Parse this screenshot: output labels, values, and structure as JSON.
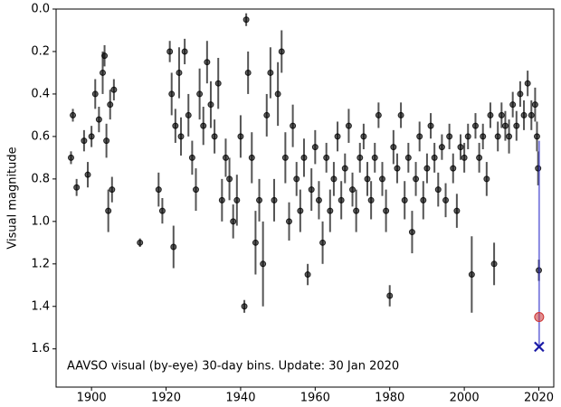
{
  "chart_data": {
    "type": "scatter",
    "ylabel": "Visual magnitude",
    "annotation": "AAVSO visual (by-eye) 30-day bins. Update: 30 Jan 2020",
    "xlim": [
      1890.5,
      2024
    ],
    "ylim": [
      0,
      1.78
    ],
    "y_inverted": true,
    "xticks": [
      1900,
      1920,
      1940,
      1960,
      1980,
      2000,
      2020
    ],
    "yticks": [
      {
        "value": 0,
        "label": "0.0"
      },
      0.2,
      0.4,
      0.6,
      0.8,
      {
        "value": 1,
        "label": "1.0"
      },
      1.2,
      1.4,
      1.6
    ],
    "series": [
      {
        "style": "errorbar",
        "color": "#000000",
        "err_color": "#555555",
        "x": [
          1894.5,
          1895,
          1896,
          1898,
          1899,
          1900,
          1901,
          1902,
          1903,
          1903.5,
          1904,
          1904.5,
          1905,
          1905.5,
          1906,
          1913,
          1918,
          1919,
          1921,
          1921.5,
          1922,
          1922.5,
          1923.5,
          1924,
          1925,
          1926,
          1927,
          1928,
          1929,
          1930,
          1931,
          1932,
          1933,
          1934,
          1935,
          1936,
          1937,
          1938,
          1939,
          1940,
          1941,
          1941.5,
          1942,
          1943,
          1944,
          1945,
          1946,
          1947,
          1948,
          1949,
          1950,
          1951,
          1952,
          1953,
          1954,
          1955,
          1956,
          1957,
          1958,
          1959,
          1960,
          1961,
          1962,
          1963,
          1964,
          1965,
          1966,
          1967,
          1968,
          1969,
          1970,
          1971,
          1972,
          1973,
          1974,
          1975,
          1976,
          1977,
          1978,
          1979,
          1980,
          1981,
          1982,
          1983,
          1984,
          1985,
          1986,
          1987,
          1988,
          1989,
          1990,
          1991,
          1992,
          1993,
          1994,
          1995,
          1996,
          1997,
          1998,
          1999,
          2000,
          2001,
          2002,
          2003,
          2004,
          2005,
          2006,
          2007,
          2008,
          2009,
          2010,
          2011,
          2012,
          2013,
          2014,
          2015,
          2016,
          2017,
          2018,
          2019,
          2019.5,
          2019.8,
          2020
        ],
        "y": [
          0.7,
          0.5,
          0.84,
          0.62,
          0.78,
          0.6,
          0.4,
          0.52,
          0.3,
          0.22,
          0.62,
          0.95,
          0.45,
          0.85,
          0.38,
          1.1,
          0.85,
          0.95,
          0.2,
          0.4,
          1.12,
          0.55,
          0.3,
          0.6,
          0.2,
          0.5,
          0.7,
          0.85,
          0.4,
          0.55,
          0.25,
          0.45,
          0.6,
          0.35,
          0.9,
          0.7,
          0.8,
          1.0,
          0.9,
          0.6,
          1.4,
          0.05,
          0.3,
          0.7,
          1.1,
          0.9,
          1.2,
          0.5,
          0.3,
          0.9,
          0.4,
          0.2,
          0.7,
          1.0,
          0.55,
          0.8,
          0.95,
          0.7,
          1.25,
          0.85,
          0.65,
          0.9,
          1.1,
          0.7,
          0.95,
          0.8,
          0.6,
          0.9,
          0.75,
          0.55,
          0.85,
          0.95,
          0.7,
          0.6,
          0.8,
          0.9,
          0.7,
          0.5,
          0.8,
          0.95,
          1.35,
          0.65,
          0.75,
          0.5,
          0.9,
          0.7,
          1.05,
          0.8,
          0.6,
          0.9,
          0.75,
          0.55,
          0.7,
          0.85,
          0.65,
          0.9,
          0.6,
          0.75,
          0.95,
          0.65,
          0.7,
          0.6,
          1.25,
          0.55,
          0.7,
          0.6,
          0.8,
          0.5,
          1.2,
          0.6,
          0.5,
          0.55,
          0.6,
          0.45,
          0.55,
          0.4,
          0.5,
          0.35,
          0.5,
          0.45,
          0.6,
          0.75,
          1.23
        ],
        "err": [
          0.03,
          0.03,
          0.04,
          0.05,
          0.06,
          0.05,
          0.07,
          0.06,
          0.1,
          0.05,
          0.08,
          0.1,
          0.07,
          0.06,
          0.05,
          0.02,
          0.08,
          0.06,
          0.05,
          0.1,
          0.1,
          0.08,
          0.12,
          0.09,
          0.06,
          0.1,
          0.08,
          0.1,
          0.12,
          0.09,
          0.1,
          0.11,
          0.08,
          0.12,
          0.1,
          0.09,
          0.1,
          0.08,
          0.12,
          0.1,
          0.03,
          0.03,
          0.1,
          0.12,
          0.15,
          0.1,
          0.2,
          0.1,
          0.12,
          0.1,
          0.15,
          0.1,
          0.12,
          0.09,
          0.1,
          0.08,
          0.1,
          0.09,
          0.05,
          0.1,
          0.08,
          0.09,
          0.1,
          0.07,
          0.1,
          0.08,
          0.07,
          0.09,
          0.07,
          0.08,
          0.08,
          0.1,
          0.07,
          0.06,
          0.08,
          0.09,
          0.07,
          0.06,
          0.08,
          0.1,
          0.05,
          0.08,
          0.07,
          0.06,
          0.09,
          0.07,
          0.1,
          0.08,
          0.07,
          0.09,
          0.07,
          0.06,
          0.07,
          0.08,
          0.06,
          0.08,
          0.06,
          0.07,
          0.08,
          0.06,
          0.07,
          0.06,
          0.18,
          0.06,
          0.07,
          0.06,
          0.08,
          0.06,
          0.1,
          0.07,
          0.06,
          0.07,
          0.08,
          0.06,
          0.07,
          0.06,
          0.07,
          0.06,
          0.07,
          0.08,
          0.07,
          0.08,
          0.05
        ]
      },
      {
        "style": "line",
        "color": "#3333cc",
        "x": [
          2020.08,
          2020.08
        ],
        "y": [
          0.62,
          1.59
        ]
      },
      {
        "style": "circle",
        "color": "#cc3333",
        "x": [
          2020.08
        ],
        "y": [
          1.45
        ]
      },
      {
        "style": "cross",
        "color": "#1a1aa6",
        "x": [
          2020.08
        ],
        "y": [
          1.59
        ]
      }
    ]
  }
}
